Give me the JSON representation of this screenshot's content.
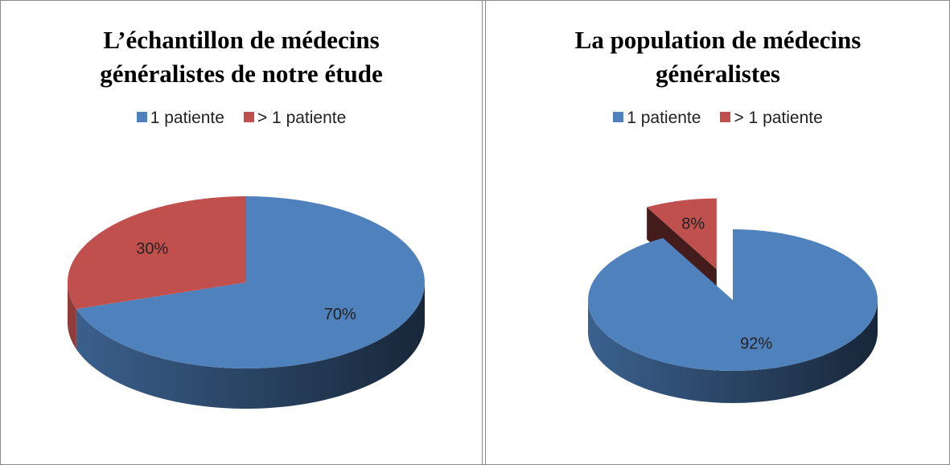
{
  "chart_data": [
    {
      "type": "pie",
      "title": "L’échantillon de médecins généralistes de notre étude",
      "categories": [
        "1 patiente",
        "> 1 patiente"
      ],
      "values": [
        70,
        30
      ],
      "value_labels": [
        "70%",
        "30%"
      ],
      "colors": [
        "#4f81bd",
        "#c0504d"
      ],
      "legend": "top"
    },
    {
      "type": "pie",
      "title": "La population de médecins généralistes",
      "categories": [
        "1 patiente",
        "> 1 patiente"
      ],
      "values": [
        92,
        8
      ],
      "value_labels": [
        "92%",
        "8%"
      ],
      "colors": [
        "#4f81bd",
        "#c0504d"
      ],
      "legend": "top"
    }
  ]
}
